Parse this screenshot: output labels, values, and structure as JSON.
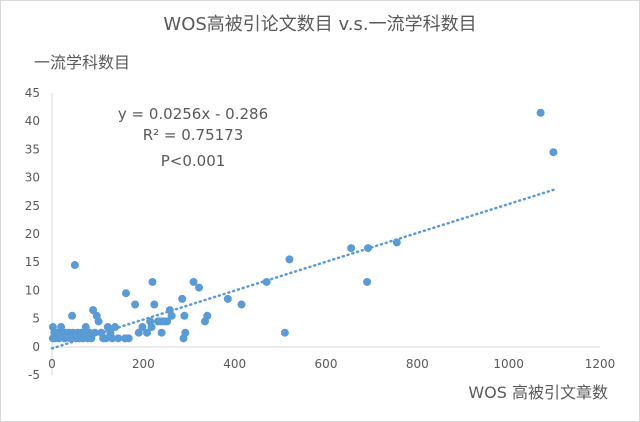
{
  "chart_data": {
    "type": "scatter",
    "title": "WOS高被引论文数目 v.s.一流学科数目",
    "xlabel": "WOS 高被引文章数",
    "ylabel": "一流学科数目",
    "xlim": [
      0,
      1200
    ],
    "ylim": [
      -5,
      45
    ],
    "x_ticks": [
      "0",
      "200",
      "400",
      "600",
      "800",
      "1000",
      "1200"
    ],
    "y_ticks": [
      "45",
      "40",
      "35",
      "30",
      "25",
      "20",
      "15",
      "10",
      "5",
      "0",
      "-5"
    ],
    "grid": false,
    "legend": "none",
    "point_color": "#5b9bd5",
    "trendline": {
      "slope": 0.0256,
      "intercept": -0.286,
      "x_range": [
        0,
        1100
      ],
      "style": "dotted"
    },
    "annotations": [
      "y = 0.0256x - 0.286",
      "R² = 0.75173",
      "P<0.001"
    ],
    "points": [
      {
        "x": 2,
        "y": 3.5
      },
      {
        "x": 2,
        "y": 1.5
      },
      {
        "x": 5,
        "y": 2.5
      },
      {
        "x": 8,
        "y": 1.5
      },
      {
        "x": 10,
        "y": 2.5
      },
      {
        "x": 15,
        "y": 1.5
      },
      {
        "x": 20,
        "y": 3.5
      },
      {
        "x": 25,
        "y": 2.5
      },
      {
        "x": 28,
        "y": 1.5
      },
      {
        "x": 32,
        "y": 2.5
      },
      {
        "x": 38,
        "y": 2.5
      },
      {
        "x": 40,
        "y": 1.5
      },
      {
        "x": 44,
        "y": 5.5
      },
      {
        "x": 46,
        "y": 2.5
      },
      {
        "x": 50,
        "y": 14.5
      },
      {
        "x": 52,
        "y": 1.5
      },
      {
        "x": 56,
        "y": 2.5
      },
      {
        "x": 60,
        "y": 1.5
      },
      {
        "x": 64,
        "y": 2.5
      },
      {
        "x": 68,
        "y": 1.5
      },
      {
        "x": 72,
        "y": 2.5
      },
      {
        "x": 74,
        "y": 3.5
      },
      {
        "x": 78,
        "y": 1.5
      },
      {
        "x": 82,
        "y": 2.5
      },
      {
        "x": 86,
        "y": 1.5
      },
      {
        "x": 90,
        "y": 6.5
      },
      {
        "x": 94,
        "y": 2.5
      },
      {
        "x": 98,
        "y": 5.5
      },
      {
        "x": 102,
        "y": 4.5
      },
      {
        "x": 108,
        "y": 2.5
      },
      {
        "x": 112,
        "y": 1.5
      },
      {
        "x": 118,
        "y": 1.5
      },
      {
        "x": 122,
        "y": 3.5
      },
      {
        "x": 128,
        "y": 2.5
      },
      {
        "x": 132,
        "y": 1.5
      },
      {
        "x": 138,
        "y": 3.5
      },
      {
        "x": 145,
        "y": 1.5
      },
      {
        "x": 160,
        "y": 1.5
      },
      {
        "x": 162,
        "y": 9.5
      },
      {
        "x": 168,
        "y": 1.5
      },
      {
        "x": 182,
        "y": 7.5
      },
      {
        "x": 190,
        "y": 2.5
      },
      {
        "x": 198,
        "y": 3.5
      },
      {
        "x": 208,
        "y": 2.5
      },
      {
        "x": 215,
        "y": 4.5
      },
      {
        "x": 218,
        "y": 3.5
      },
      {
        "x": 220,
        "y": 11.5
      },
      {
        "x": 224,
        "y": 7.5
      },
      {
        "x": 232,
        "y": 4.5
      },
      {
        "x": 238,
        "y": 4.5
      },
      {
        "x": 240,
        "y": 2.5
      },
      {
        "x": 246,
        "y": 4.5
      },
      {
        "x": 252,
        "y": 4.5
      },
      {
        "x": 258,
        "y": 6.5
      },
      {
        "x": 262,
        "y": 5.5
      },
      {
        "x": 285,
        "y": 8.5
      },
      {
        "x": 288,
        "y": 1.5
      },
      {
        "x": 290,
        "y": 5.5
      },
      {
        "x": 292,
        "y": 2.5
      },
      {
        "x": 310,
        "y": 11.5
      },
      {
        "x": 322,
        "y": 10.5
      },
      {
        "x": 335,
        "y": 4.5
      },
      {
        "x": 340,
        "y": 5.5
      },
      {
        "x": 385,
        "y": 8.5
      },
      {
        "x": 415,
        "y": 7.5
      },
      {
        "x": 470,
        "y": 11.5
      },
      {
        "x": 510,
        "y": 2.5
      },
      {
        "x": 520,
        "y": 15.5
      },
      {
        "x": 655,
        "y": 17.5
      },
      {
        "x": 690,
        "y": 11.5
      },
      {
        "x": 692,
        "y": 17.5
      },
      {
        "x": 755,
        "y": 18.5
      },
      {
        "x": 1070,
        "y": 41.5
      },
      {
        "x": 1098,
        "y": 34.5
      }
    ]
  }
}
